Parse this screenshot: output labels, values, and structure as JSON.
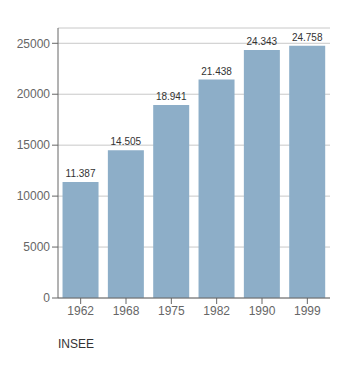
{
  "chart_data": {
    "type": "bar",
    "categories": [
      "1962",
      "1968",
      "1975",
      "1982",
      "1990",
      "1999"
    ],
    "values": [
      11387,
      14505,
      18941,
      21438,
      24343,
      24758
    ],
    "value_labels": [
      "11.387",
      "14.505",
      "18.941",
      "21.438",
      "24.343",
      "24.758"
    ],
    "color": "#8daec8",
    "ylim": [
      0,
      26500
    ],
    "yticks": [
      0,
      5000,
      10000,
      15000,
      20000,
      25000
    ],
    "grid": true,
    "annotations": [
      "INSEE"
    ]
  }
}
